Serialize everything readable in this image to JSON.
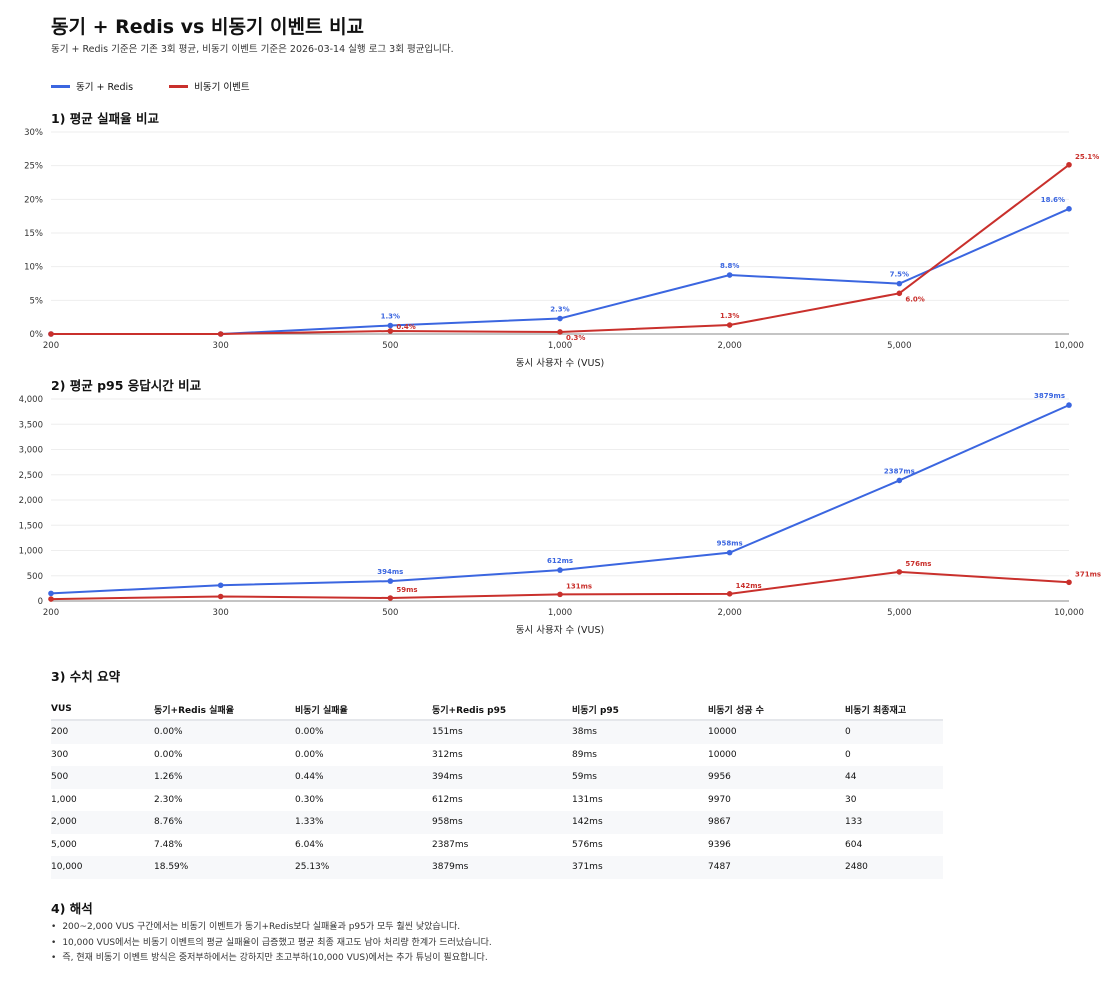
{
  "header": {
    "title": "동기 + Redis vs 비동기 이벤트 비교",
    "subtitle": "동기 + Redis 기준은 기존 3회 평균, 비동기 이벤트 기준은 2026-03-14 실행 로그 3회 평균입니다."
  },
  "legend": [
    {
      "label": "동기 + Redis",
      "color": "#3b66e0"
    },
    {
      "label": "비동기 이벤트",
      "color": "#c9302c"
    }
  ],
  "sections": {
    "failure": "1) 평균 실패율 비교",
    "p95": "2) 평균 p95 응답시간 비교",
    "summary": "3) 수치 요약",
    "interpretation": "4) 해석"
  },
  "colors": {
    "sync": "#3b66e0",
    "async": "#c9302c",
    "grid": "#eeeeee",
    "axis": "#888888"
  },
  "chart_data": [
    {
      "type": "line",
      "title": "1) 평균 실패율 비교",
      "xlabel": "동시 사용자 수 (VUS)",
      "ylabel": "",
      "categories": [
        "200",
        "300",
        "500",
        "1,000",
        "2,000",
        "5,000",
        "10,000"
      ],
      "ylim": [
        0,
        30
      ],
      "yticks": [
        0,
        5,
        10,
        15,
        20,
        25,
        30
      ],
      "ytick_labels": [
        "0%",
        "5%",
        "10%",
        "15%",
        "20%",
        "25%",
        "30%"
      ],
      "series": [
        {
          "name": "동기 + Redis",
          "key": "sync",
          "values": [
            0.0,
            0.0,
            1.26,
            2.3,
            8.76,
            7.48,
            18.59
          ],
          "labels": [
            "",
            "",
            "1.3%",
            "2.3%",
            "8.8%",
            "7.5%",
            "18.6%"
          ]
        },
        {
          "name": "비동기 이벤트",
          "key": "async",
          "values": [
            0.0,
            0.0,
            0.44,
            0.3,
            1.33,
            6.04,
            25.13
          ],
          "labels": [
            "",
            "",
            "0.4%",
            "0.3%",
            "1.3%",
            "6.0%",
            "25.1%"
          ]
        }
      ]
    },
    {
      "type": "line",
      "title": "2) 평균 p95 응답시간 비교",
      "xlabel": "동시 사용자 수 (VUS)",
      "ylabel": "",
      "categories": [
        "200",
        "300",
        "500",
        "1,000",
        "2,000",
        "5,000",
        "10,000"
      ],
      "ylim": [
        0,
        4000
      ],
      "yticks": [
        0,
        500,
        1000,
        1500,
        2000,
        2500,
        3000,
        3500,
        4000
      ],
      "ytick_labels": [
        "0",
        "500",
        "1,000",
        "1,500",
        "2,000",
        "2,500",
        "3,000",
        "3,500",
        "4,000"
      ],
      "series": [
        {
          "name": "동기 + Redis",
          "key": "sync",
          "values": [
            151,
            312,
            394,
            612,
            958,
            2387,
            3879
          ],
          "labels": [
            "",
            "",
            "394ms",
            "612ms",
            "958ms",
            "2387ms",
            "3879ms"
          ]
        },
        {
          "name": "비동기 이벤트",
          "key": "async",
          "values": [
            38,
            89,
            59,
            131,
            142,
            576,
            371
          ],
          "labels": [
            "",
            "",
            "59ms",
            "131ms",
            "142ms",
            "576ms",
            "371ms"
          ]
        }
      ]
    }
  ],
  "table": {
    "headers": [
      "VUS",
      "동기+Redis 실패율",
      "비동기 실패율",
      "동기+Redis p95",
      "비동기 p95",
      "비동기 성공 수",
      "비동기 최종재고"
    ],
    "rows": [
      [
        "200",
        "0.00%",
        "0.00%",
        "151ms",
        "38ms",
        "10000",
        "0"
      ],
      [
        "300",
        "0.00%",
        "0.00%",
        "312ms",
        "89ms",
        "10000",
        "0"
      ],
      [
        "500",
        "1.26%",
        "0.44%",
        "394ms",
        "59ms",
        "9956",
        "44"
      ],
      [
        "1,000",
        "2.30%",
        "0.30%",
        "612ms",
        "131ms",
        "9970",
        "30"
      ],
      [
        "2,000",
        "8.76%",
        "1.33%",
        "958ms",
        "142ms",
        "9867",
        "133"
      ],
      [
        "5,000",
        "7.48%",
        "6.04%",
        "2387ms",
        "576ms",
        "9396",
        "604"
      ],
      [
        "10,000",
        "18.59%",
        "25.13%",
        "3879ms",
        "371ms",
        "7487",
        "2480"
      ]
    ]
  },
  "notes": [
    "200~2,000 VUS 구간에서는 비동기 이벤트가 동기+Redis보다 실패율과 p95가 모두 훨씬 낮았습니다.",
    "10,000 VUS에서는 비동기 이벤트의 평균 실패율이 급증했고 평균 최종 재고도 남아 처리량 한계가 드러났습니다.",
    "즉, 현재 비동기 이벤트 방식은 중저부하에서는 강하지만 초고부하(10,000 VUS)에서는 추가 튜닝이 필요합니다."
  ]
}
